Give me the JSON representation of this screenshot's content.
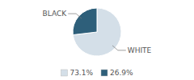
{
  "chart_data": {
    "type": "pie",
    "categories": [
      "WHITE",
      "BLACK"
    ],
    "values": [
      73.1,
      26.9
    ],
    "value_labels": [
      "73.1%",
      "26.9%"
    ],
    "colors": [
      "#d4dfe8",
      "#2e5f7a"
    ],
    "legend": "bottom"
  }
}
